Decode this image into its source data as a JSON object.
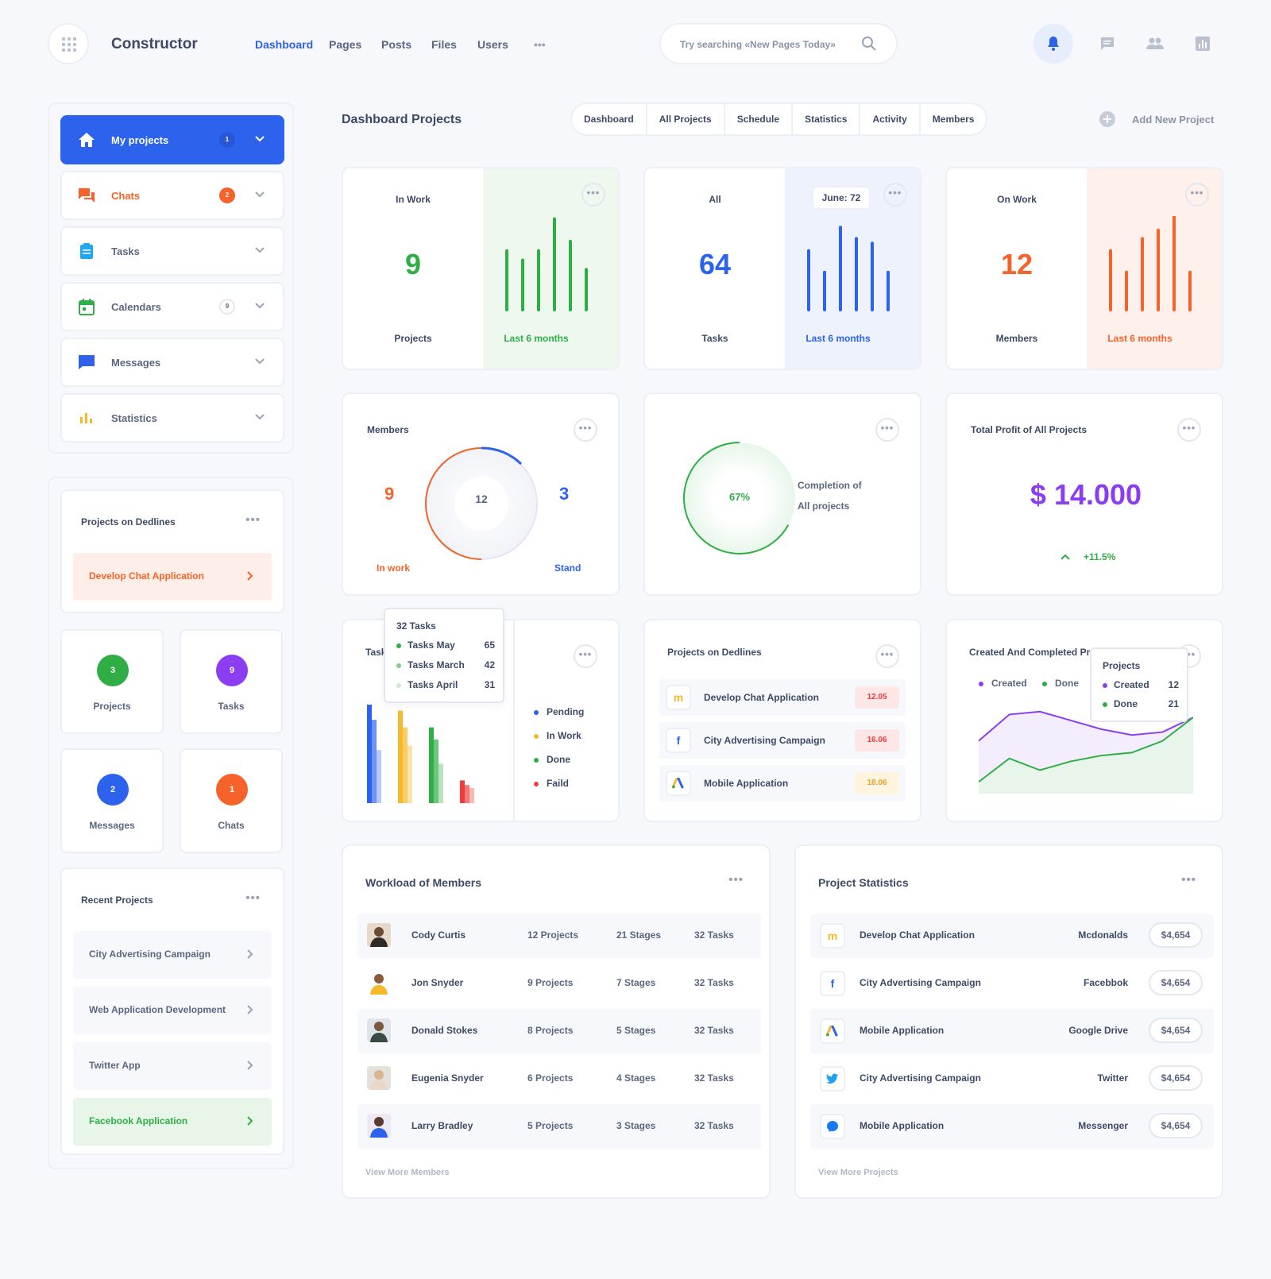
{
  "app": {
    "brand": "Constructor"
  },
  "nav": {
    "items": [
      "Dashboard",
      "Pages",
      "Posts",
      "Files",
      "Users"
    ],
    "more": "•••"
  },
  "search": {
    "placeholder": "Try searching «New Pages Today»"
  },
  "sidebar": {
    "items": [
      {
        "label": "My projects",
        "count": "1"
      },
      {
        "label": "Chats",
        "count": "2"
      },
      {
        "label": "Tasks",
        "count": ""
      },
      {
        "label": "Calendars",
        "count": "9"
      },
      {
        "label": "Messages",
        "count": ""
      },
      {
        "label": "Statistics",
        "count": ""
      }
    ],
    "deadlines": {
      "title": "Projects on Dedlines",
      "item": "Develop Chat Application"
    },
    "mini_stats": [
      {
        "value": "3",
        "label": "Projects",
        "color": "#2fae45"
      },
      {
        "value": "9",
        "label": "Tasks",
        "color": "#8b3ef0"
      },
      {
        "value": "2",
        "label": "Messages",
        "color": "#2d62ed"
      },
      {
        "value": "1",
        "label": "Chats",
        "color": "#f5632a"
      }
    ],
    "recent": {
      "title": "Recent Projects",
      "items": [
        "City Advertising Campaign",
        "Web Application Development",
        "Twitter App",
        "Facebook Application"
      ]
    }
  },
  "main": {
    "title": "Dashboard Projects",
    "tabs": [
      "Dashboard",
      "All Projects",
      "Schedule",
      "Statistics",
      "Activity",
      "Members"
    ],
    "add_project": "Add New Project",
    "kpis": [
      {
        "title": "In Work",
        "value": "9",
        "label": "Projects",
        "period": "Last 6 months",
        "color": "#2fae45",
        "bars": [
          0.63,
          0.53,
          0.63,
          0.97,
          0.73,
          0.43
        ]
      },
      {
        "title": "All",
        "value": "64",
        "label": "Tasks",
        "period": "Last 6 months",
        "color": "#2d62ed",
        "tooltip": "June: 72",
        "bars": [
          0.63,
          0.4,
          0.88,
          0.76,
          0.71,
          0.4
        ]
      },
      {
        "title": "On Work",
        "value": "12",
        "label": "Members",
        "period": "Last 6 months",
        "color": "#f5632a",
        "bars": [
          0.63,
          0.4,
          0.76,
          0.85,
          1.0,
          0.4
        ]
      }
    ],
    "members": {
      "title": "Members",
      "in_work_value": "9",
      "in_work_label": "In work",
      "total": "12",
      "stand_value": "3",
      "stand_label": "Stand"
    },
    "completion": {
      "percent": "67%",
      "text1": "Completion of",
      "text2": "All projects",
      "fraction": 0.67
    },
    "profit": {
      "title": "Total Profit of All Projects",
      "value": "$ 14.000",
      "change": "+11.5%"
    },
    "tasks_chart": {
      "title": "Tasks",
      "tooltip": {
        "title": "32 Tasks",
        "rows": [
          {
            "label": "Tasks May",
            "value": "65"
          },
          {
            "label": "Tasks March",
            "value": "42"
          },
          {
            "label": "Tasks April",
            "value": "31"
          }
        ]
      },
      "legend": [
        {
          "label": "Pending",
          "color": "#2d62ed"
        },
        {
          "label": "In Work",
          "color": "#f6b92b"
        },
        {
          "label": "Done",
          "color": "#2fae45"
        },
        {
          "label": "Faild",
          "color": "#f23c3c"
        }
      ]
    },
    "deadlines": {
      "title": "Projects on Dedlines",
      "items": [
        {
          "name": "Develop Chat Application",
          "date": "12.05",
          "icon": "mcdonalds-icon"
        },
        {
          "name": "City Advertising Campaign",
          "date": "16.06",
          "icon": "facebook-icon"
        },
        {
          "name": "Mobile Application",
          "date": "18.06",
          "icon": "google-ads-icon"
        }
      ]
    },
    "created_completed": {
      "title": "Created And Completed Projects",
      "legend": [
        "Created",
        "Done"
      ],
      "tooltip": {
        "title": "Projects",
        "rows": [
          {
            "label": "Created",
            "value": "12"
          },
          {
            "label": "Done",
            "value": "21"
          }
        ]
      }
    },
    "workload": {
      "title": "Workload of Members",
      "rows": [
        {
          "name": "Cody Curtis",
          "projects": "12 Projects",
          "stages": "21 Stages",
          "tasks": "32 Tasks"
        },
        {
          "name": "Jon Snyder",
          "projects": "9 Projects",
          "stages": "7 Stages",
          "tasks": "32 Tasks"
        },
        {
          "name": "Donald Stokes",
          "projects": "8 Projects",
          "stages": "5 Stages",
          "tasks": "32 Tasks"
        },
        {
          "name": "Eugenia Snyder",
          "projects": "6 Projects",
          "stages": "4 Stages",
          "tasks": "32 Tasks"
        },
        {
          "name": "Larry Bradley",
          "projects": "5 Projects",
          "stages": "3 Stages",
          "tasks": "32 Tasks"
        }
      ],
      "more": "View More Members"
    },
    "project_stats": {
      "title": "Project Statistics",
      "rows": [
        {
          "name": "Develop Chat Application",
          "client": "Mcdonalds",
          "amount": "$4,654",
          "icon": "mcdonalds-icon"
        },
        {
          "name": "City Advertising Campaign",
          "client": "Facebbok",
          "amount": "$4,654",
          "icon": "facebook-icon"
        },
        {
          "name": "Mobile Application",
          "client": "Google Drive",
          "amount": "$4,654",
          "icon": "google-ads-icon"
        },
        {
          "name": "City Advertising Campaign",
          "client": "Twitter",
          "amount": "$4,654",
          "icon": "twitter-icon"
        },
        {
          "name": "Mobile Application",
          "client": "Messenger",
          "amount": "$4,654",
          "icon": "messenger-icon"
        }
      ],
      "more": "View More Projects"
    }
  },
  "chart_data": [
    {
      "type": "bar",
      "title": "Tasks",
      "categories": [
        "Pending",
        "In Work",
        "Done",
        "Faild"
      ],
      "series": [
        {
          "name": "Tasks May",
          "values": [
            65,
            61,
            50,
            15
          ]
        },
        {
          "name": "Tasks March",
          "values": [
            55,
            50,
            42,
            12
          ]
        },
        {
          "name": "Tasks April",
          "values": [
            35,
            38,
            26,
            10
          ]
        }
      ]
    },
    {
      "type": "area",
      "title": "Created And Completed Projects",
      "x": [
        1,
        2,
        3,
        4,
        5,
        6,
        7,
        8
      ],
      "series": [
        {
          "name": "Created",
          "values": [
            18,
            27,
            28,
            25,
            22,
            20,
            21,
            26
          ]
        },
        {
          "name": "Done",
          "values": [
            4,
            12,
            8,
            11,
            13,
            14,
            18,
            26
          ]
        }
      ]
    }
  ]
}
